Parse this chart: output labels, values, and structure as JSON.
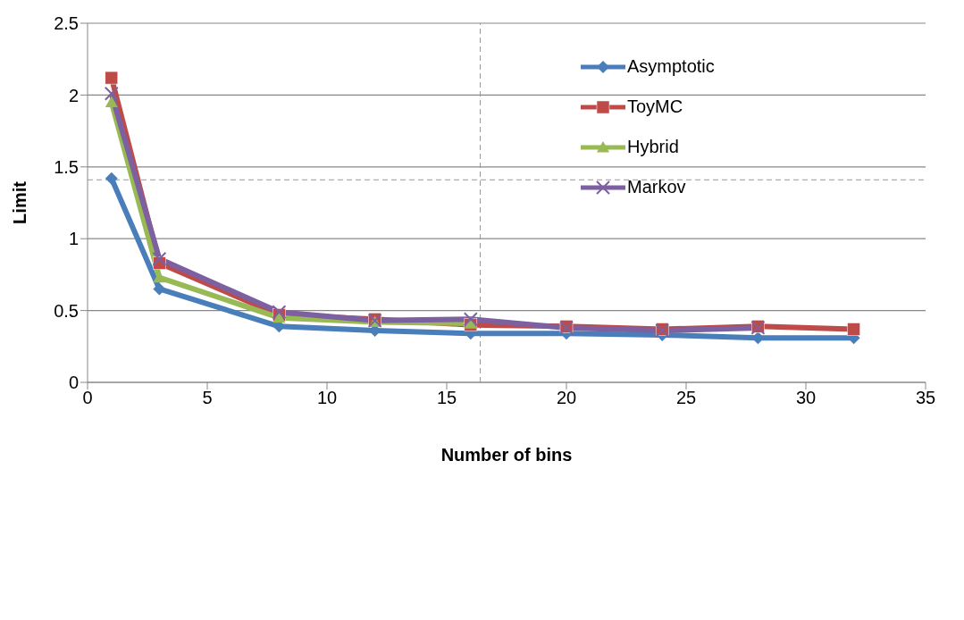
{
  "chart_data": {
    "type": "line",
    "xlabel": "Number of bins",
    "ylabel": "Limit",
    "x": [
      1,
      3,
      8,
      12,
      16,
      20,
      24,
      28,
      32
    ],
    "series": [
      {
        "name": "Asymptotic",
        "color": "#4a7ebb",
        "marker": "diamond",
        "values": [
          1.42,
          0.65,
          0.39,
          0.36,
          0.34,
          0.34,
          0.33,
          0.31,
          0.31
        ]
      },
      {
        "name": "ToyMC",
        "color": "#be4b48",
        "marker": "square",
        "values": [
          2.12,
          0.83,
          0.47,
          0.44,
          0.4,
          0.39,
          0.37,
          0.39,
          0.37
        ]
      },
      {
        "name": "Hybrid",
        "color": "#98b954",
        "marker": "triangle",
        "values": [
          1.95,
          0.73,
          0.45,
          0.42,
          0.41,
          null,
          null,
          null,
          null
        ]
      },
      {
        "name": "Markov",
        "color": "#7d60a0",
        "marker": "cross",
        "values": [
          2.01,
          0.86,
          0.49,
          0.43,
          0.44,
          0.38,
          0.36,
          0.38,
          null
        ]
      }
    ],
    "xlim": [
      0,
      35
    ],
    "xticks": [
      0,
      5,
      10,
      15,
      20,
      25,
      30,
      35
    ],
    "ylim": [
      0,
      2.5
    ],
    "yticks": [
      0,
      0.5,
      1,
      1.5,
      2,
      2.5
    ],
    "grid": "y",
    "legend": "top right",
    "line_style": "solid",
    "ref_lines": [
      {
        "axis": "x",
        "value": 16.4,
        "color": "#999999",
        "line_style": "dashed"
      },
      {
        "axis": "y",
        "value": 1.41,
        "color": "#999999",
        "line_style": "dashed"
      }
    ]
  }
}
